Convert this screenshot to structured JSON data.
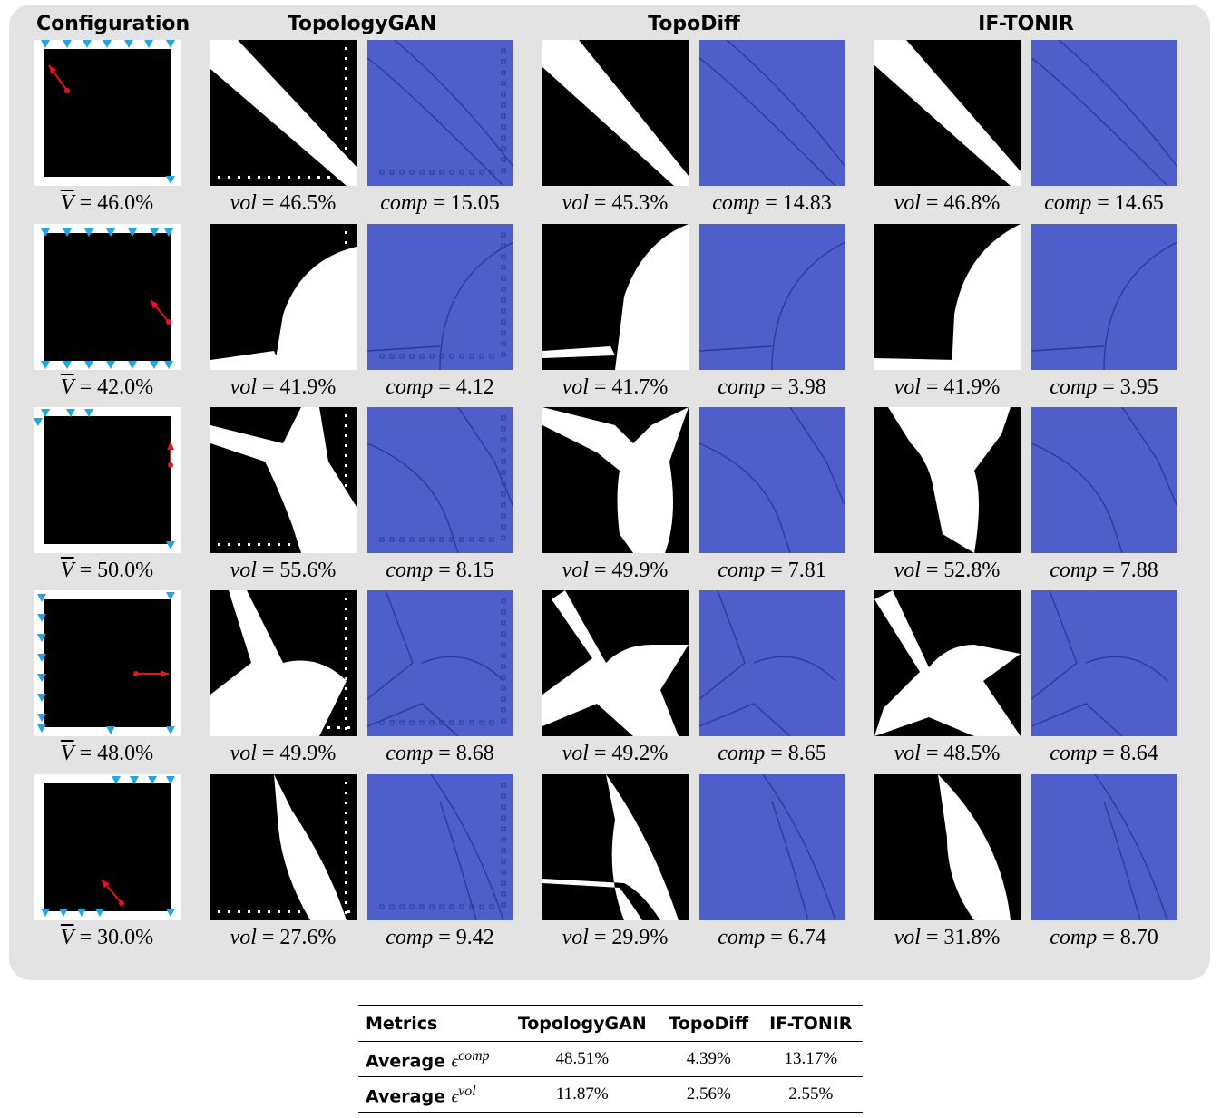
{
  "headers": {
    "configuration": "Configuration",
    "method1": "TopologyGAN",
    "method2": "TopoDiff",
    "method3": "IF-TONIR"
  },
  "rows": [
    {
      "target": "= 46.0%",
      "gan_vol": "= 46.5%",
      "gan_comp": "= 15.05",
      "diff_vol": "= 45.3%",
      "diff_comp": "= 14.83",
      "ift_vol": "= 46.8%",
      "ift_comp": "= 14.65"
    },
    {
      "target": "= 42.0%",
      "gan_vol": "= 41.9%",
      "gan_comp": "= 4.12",
      "diff_vol": "= 41.7%",
      "diff_comp": "= 3.98",
      "ift_vol": "= 41.9%",
      "ift_comp": "= 3.95"
    },
    {
      "target": "= 50.0%",
      "gan_vol": "= 55.6%",
      "gan_comp": "= 8.15",
      "diff_vol": "= 49.9%",
      "diff_comp": "= 7.81",
      "ift_vol": "= 52.8%",
      "ift_comp": "= 7.88"
    },
    {
      "target": "= 48.0%",
      "gan_vol": "= 49.9%",
      "gan_comp": "= 8.68",
      "diff_vol": "= 49.2%",
      "diff_comp": "= 8.65",
      "ift_vol": "= 48.5%",
      "ift_comp": "= 8.64"
    },
    {
      "target": "= 30.0%",
      "gan_vol": "= 27.6%",
      "gan_comp": "= 9.42",
      "diff_vol": "= 29.9%",
      "diff_comp": "= 6.74",
      "ift_vol": "= 31.8%",
      "ift_comp": "= 8.70"
    }
  ],
  "symbols": {
    "vbar": "V",
    "vol": "vol",
    "comp": "comp"
  },
  "colors": {
    "panel": "#e3e3e3",
    "compliance_blue": "#4e5fcb",
    "load_arrow": "#e8131b",
    "support": "#1ea7e1"
  },
  "table": {
    "headers": [
      "Metrics",
      "TopologyGAN",
      "TopoDiff",
      "IF-TONIR"
    ],
    "rows": [
      {
        "label": "Average ",
        "symbol": "ϵ",
        "sup": "comp",
        "values": [
          "48.51%",
          "4.39%",
          "13.17%"
        ]
      },
      {
        "label": "Average ",
        "symbol": "ϵ",
        "sup": "vol",
        "values": [
          "11.87%",
          "2.56%",
          "2.55%"
        ]
      }
    ]
  }
}
